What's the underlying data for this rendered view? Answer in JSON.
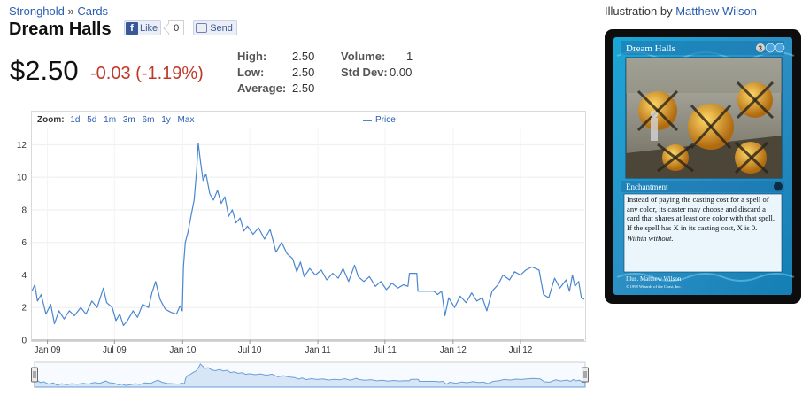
{
  "breadcrumb": {
    "set": "Stronghold",
    "sep": "»",
    "section": "Cards"
  },
  "card": {
    "name": "Dream Halls"
  },
  "social": {
    "like": "Like",
    "like_count": "0",
    "send": "Send"
  },
  "price": {
    "current": "$2.50",
    "change": "-0.03 (-1.19%)",
    "change_color": "#c0392b"
  },
  "stats": {
    "high_label": "High:",
    "high": "2.50",
    "low_label": "Low:",
    "low": "2.50",
    "average_label": "Average:",
    "average": "2.50",
    "volume_label": "Volume:",
    "volume": "1",
    "stddev_label": "Std Dev:",
    "stddev": "0.00"
  },
  "zoom": {
    "label": "Zoom:",
    "options": [
      "1d",
      "5d",
      "1m",
      "3m",
      "6m",
      "1y",
      "Max"
    ]
  },
  "illustration": {
    "label": "Illustration by",
    "artist": "Matthew Wilson"
  },
  "card_text": {
    "name": "Dream Halls",
    "cost": "3",
    "type": "Enchantment",
    "rules": "Instead of paying the casting cost for a spell of any color, its caster may choose and discard a card that shares at least one color with that spell. If the spell has X in its casting cost, X is 0.",
    "flavor": "Within without.",
    "illus": "Illus. Matthew Wilson",
    "copyright": "© 1998 Wizards of the Coast, Inc."
  },
  "chart_data": {
    "type": "line",
    "legend": "top-center",
    "grid": true,
    "xlabel": "",
    "ylabel": "",
    "ylim": [
      0,
      13
    ],
    "y_ticks": [
      0,
      2,
      4,
      6,
      8,
      10,
      12
    ],
    "x_ticks": [
      "Jan 09",
      "Jul 09",
      "Jan 10",
      "Jul 10",
      "Jan 11",
      "Jul 11",
      "Jan 12",
      "Jul 12"
    ],
    "x_tick_dates": [
      "2009-01-01",
      "2009-07-01",
      "2010-01-01",
      "2010-07-01",
      "2011-01-01",
      "2011-07-01",
      "2012-01-01",
      "2012-07-01"
    ],
    "xlim": [
      "2008-11-20",
      "2012-12-20"
    ],
    "series": [
      {
        "name": "Price",
        "color": "#4a86cf",
        "points": [
          [
            "2008-11-20",
            3.0
          ],
          [
            "2008-11-28",
            3.4
          ],
          [
            "2008-12-05",
            2.4
          ],
          [
            "2008-12-15",
            2.8
          ],
          [
            "2008-12-28",
            1.6
          ],
          [
            "2009-01-10",
            2.2
          ],
          [
            "2009-01-20",
            1.0
          ],
          [
            "2009-02-01",
            1.8
          ],
          [
            "2009-02-15",
            1.3
          ],
          [
            "2009-03-01",
            1.8
          ],
          [
            "2009-03-15",
            1.5
          ],
          [
            "2009-04-01",
            2.0
          ],
          [
            "2009-04-15",
            1.6
          ],
          [
            "2009-05-01",
            2.4
          ],
          [
            "2009-05-15",
            2.0
          ],
          [
            "2009-06-01",
            3.2
          ],
          [
            "2009-06-10",
            2.3
          ],
          [
            "2009-06-25",
            2.0
          ],
          [
            "2009-07-05",
            1.2
          ],
          [
            "2009-07-15",
            1.6
          ],
          [
            "2009-07-25",
            0.9
          ],
          [
            "2009-08-05",
            1.2
          ],
          [
            "2009-08-20",
            1.8
          ],
          [
            "2009-09-01",
            1.4
          ],
          [
            "2009-09-15",
            2.2
          ],
          [
            "2009-10-01",
            2.0
          ],
          [
            "2009-10-10",
            2.9
          ],
          [
            "2009-10-20",
            3.6
          ],
          [
            "2009-11-01",
            2.5
          ],
          [
            "2009-11-15",
            1.9
          ],
          [
            "2009-12-01",
            1.7
          ],
          [
            "2009-12-15",
            1.6
          ],
          [
            "2009-12-25",
            2.1
          ],
          [
            "2009-12-31",
            1.8
          ],
          [
            "2010-01-03",
            4.5
          ],
          [
            "2010-01-08",
            6.0
          ],
          [
            "2010-01-15",
            6.6
          ],
          [
            "2010-01-25",
            7.8
          ],
          [
            "2010-02-01",
            8.6
          ],
          [
            "2010-02-08",
            10.5
          ],
          [
            "2010-02-12",
            12.1
          ],
          [
            "2010-02-18",
            11.0
          ],
          [
            "2010-02-25",
            9.8
          ],
          [
            "2010-03-05",
            10.2
          ],
          [
            "2010-03-15",
            9.0
          ],
          [
            "2010-03-25",
            8.6
          ],
          [
            "2010-04-05",
            9.2
          ],
          [
            "2010-04-15",
            8.4
          ],
          [
            "2010-04-25",
            8.8
          ],
          [
            "2010-05-05",
            7.6
          ],
          [
            "2010-05-15",
            8.0
          ],
          [
            "2010-05-25",
            7.2
          ],
          [
            "2010-06-05",
            7.5
          ],
          [
            "2010-06-15",
            6.7
          ],
          [
            "2010-06-25",
            7.0
          ],
          [
            "2010-07-10",
            6.5
          ],
          [
            "2010-07-25",
            6.9
          ],
          [
            "2010-08-10",
            6.2
          ],
          [
            "2010-08-25",
            6.8
          ],
          [
            "2010-09-10",
            5.4
          ],
          [
            "2010-09-25",
            6.0
          ],
          [
            "2010-10-10",
            5.3
          ],
          [
            "2010-10-25",
            5.0
          ],
          [
            "2010-11-05",
            4.2
          ],
          [
            "2010-11-15",
            4.8
          ],
          [
            "2010-11-25",
            3.9
          ],
          [
            "2010-12-10",
            4.4
          ],
          [
            "2010-12-25",
            4.0
          ],
          [
            "2011-01-10",
            4.3
          ],
          [
            "2011-01-25",
            3.7
          ],
          [
            "2011-02-10",
            4.1
          ],
          [
            "2011-02-25",
            3.8
          ],
          [
            "2011-03-10",
            4.4
          ],
          [
            "2011-03-25",
            3.6
          ],
          [
            "2011-04-10",
            4.6
          ],
          [
            "2011-04-20",
            3.9
          ],
          [
            "2011-05-05",
            3.6
          ],
          [
            "2011-05-20",
            3.9
          ],
          [
            "2011-06-05",
            3.3
          ],
          [
            "2011-06-20",
            3.6
          ],
          [
            "2011-07-05",
            3.1
          ],
          [
            "2011-07-20",
            3.5
          ],
          [
            "2011-08-05",
            3.2
          ],
          [
            "2011-08-20",
            3.4
          ],
          [
            "2011-09-01",
            3.3
          ],
          [
            "2011-09-05",
            4.1
          ],
          [
            "2011-09-25",
            4.1
          ],
          [
            "2011-09-28",
            3.0
          ],
          [
            "2011-11-10",
            3.0
          ],
          [
            "2011-11-20",
            2.8
          ],
          [
            "2011-12-01",
            3.0
          ],
          [
            "2011-12-10",
            1.5
          ],
          [
            "2011-12-20",
            2.6
          ],
          [
            "2012-01-05",
            2.0
          ],
          [
            "2012-01-20",
            2.7
          ],
          [
            "2012-02-05",
            2.3
          ],
          [
            "2012-02-20",
            2.9
          ],
          [
            "2012-03-05",
            2.4
          ],
          [
            "2012-03-20",
            2.6
          ],
          [
            "2012-04-01",
            1.8
          ],
          [
            "2012-04-15",
            3.0
          ],
          [
            "2012-05-01",
            3.4
          ],
          [
            "2012-05-15",
            4.0
          ],
          [
            "2012-06-01",
            3.7
          ],
          [
            "2012-06-15",
            4.2
          ],
          [
            "2012-07-01",
            4.0
          ],
          [
            "2012-07-15",
            4.3
          ],
          [
            "2012-08-01",
            4.5
          ],
          [
            "2012-08-20",
            4.3
          ],
          [
            "2012-09-01",
            2.8
          ],
          [
            "2012-09-15",
            2.6
          ],
          [
            "2012-10-01",
            3.8
          ],
          [
            "2012-10-15",
            3.2
          ],
          [
            "2012-11-01",
            3.7
          ],
          [
            "2012-11-10",
            3.0
          ],
          [
            "2012-11-18",
            4.0
          ],
          [
            "2012-11-25",
            3.3
          ],
          [
            "2012-12-05",
            3.6
          ],
          [
            "2012-12-12",
            2.6
          ],
          [
            "2012-12-20",
            2.5
          ]
        ]
      }
    ]
  }
}
